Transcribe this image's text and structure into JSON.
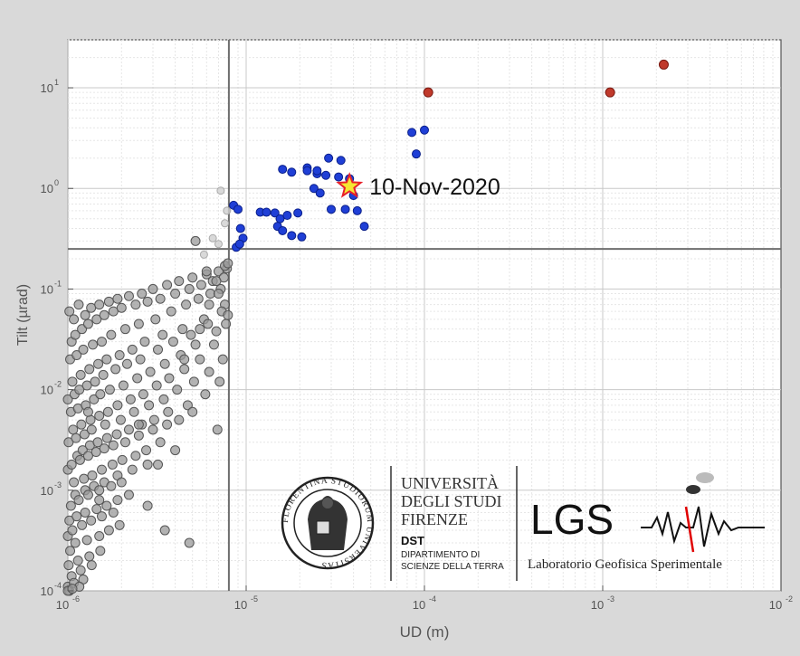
{
  "chart_data": {
    "type": "scatter",
    "title": "",
    "xlabel": "UD (m)",
    "ylabel": "Tilt (µrad)",
    "x_scale": "log",
    "y_scale": "log",
    "xlim": [
      1e-06,
      0.01
    ],
    "ylim": [
      0.0001,
      30
    ],
    "grid": true,
    "x_ticks": [
      {
        "base": "10",
        "exp": "-6",
        "value": 1e-06
      },
      {
        "base": "10",
        "exp": "-5",
        "value": 1e-05
      },
      {
        "base": "10",
        "exp": "-4",
        "value": 0.0001
      },
      {
        "base": "10",
        "exp": "-3",
        "value": 0.001
      },
      {
        "base": "10",
        "exp": "-2",
        "value": 0.01
      }
    ],
    "y_ticks": [
      {
        "base": "10",
        "exp": "-4",
        "value": 0.0001
      },
      {
        "base": "10",
        "exp": "-3",
        "value": 0.001
      },
      {
        "base": "10",
        "exp": "-2",
        "value": 0.01
      },
      {
        "base": "10",
        "exp": "-1",
        "value": 0.1
      },
      {
        "base": "10",
        "exp": "0",
        "value": 1
      },
      {
        "base": "10",
        "exp": "1",
        "value": 10
      }
    ],
    "threshold_lines": {
      "x": 8e-06,
      "y": 0.25
    },
    "colors": {
      "gray": "#9a9a9a",
      "blue": "#1f3fd6",
      "red": "#c0392b",
      "star_fill": "#f5e632",
      "star_stroke": "#e8202a",
      "threshold": "#6e6e6e"
    },
    "series": [
      {
        "group": "gray",
        "x": [
          1.02e-06,
          1.08e-06,
          1.15e-06,
          1.25e-06,
          1.35e-06,
          1.5e-06,
          1.7e-06,
          1.9e-06,
          2.2e-06,
          2.6e-06,
          3e-06,
          3.6e-06,
          4.2e-06,
          5e-06,
          6e-06,
          7e-06,
          7.8e-06,
          1.05e-06,
          1.1e-06,
          1.2e-06,
          1.3e-06,
          1.45e-06,
          1.6e-06,
          1.8e-06,
          2e-06,
          2.4e-06,
          2.8e-06,
          3.3e-06,
          4e-06,
          4.8e-06,
          5.6e-06,
          6.5e-06,
          7.5e-06,
          1.03e-06,
          1.12e-06,
          1.22e-06,
          1.38e-06,
          1.55e-06,
          1.75e-06,
          2.1e-06,
          2.5e-06,
          3.1e-06,
          3.8e-06,
          4.6e-06,
          5.4e-06,
          6.3e-06,
          7.2e-06,
          1.06e-06,
          1.18e-06,
          1.32e-06,
          1.48e-06,
          1.65e-06,
          1.95e-06,
          2.3e-06,
          2.7e-06,
          3.4e-06,
          4.4e-06,
          5.8e-06,
          7.6e-06,
          1e-06,
          1.09e-06,
          1.16e-06,
          1.28e-06,
          1.42e-06,
          1.58e-06,
          1.85e-06,
          2.15e-06,
          2.55e-06,
          3.2e-06,
          3.9e-06,
          4.9e-06,
          6.1e-06,
          7.3e-06,
          1.04e-06,
          1.14e-06,
          1.26e-06,
          1.4e-06,
          1.52e-06,
          1.72e-06,
          2.05e-06,
          2.45e-06,
          2.9e-06,
          3.5e-06,
          4.3e-06,
          5.2e-06,
          6.8e-06,
          7.9e-06,
          1.07e-06,
          1.19e-06,
          1.34e-06,
          1.5e-06,
          1.68e-06,
          1.9e-06,
          2.25e-06,
          2.65e-06,
          3.15e-06,
          3.7e-06,
          4.5e-06,
          5.5e-06,
          6.6e-06,
          7.7e-06,
          1.01e-06,
          1.11e-06,
          1.24e-06,
          1.36e-06,
          1.62e-06,
          1.98e-06,
          2.35e-06,
          2.85e-06,
          3.45e-06,
          4.1e-06,
          5.1e-06,
          6.2e-06,
          7.4e-06,
          1.13e-06,
          1.21e-06,
          1.33e-06,
          1.47e-06,
          1.66e-06,
          1.88e-06,
          2.2e-06,
          2.6e-06,
          3.05e-06,
          3.65e-06,
          4.7e-06,
          5.9e-06,
          7.1e-06,
          1e-06,
          1.05e-06,
          1.17e-06,
          1.3e-06,
          1.44e-06,
          1.6e-06,
          1.8e-06,
          2.1e-06,
          2.5e-06,
          3e-06,
          3.6e-06,
          4.2e-06,
          5e-06,
          1.08e-06,
          1.23e-06,
          1.37e-06,
          1.55e-06,
          1.78e-06,
          2.02e-06,
          2.4e-06,
          2.75e-06,
          3.3e-06,
          1.1e-06,
          1.25e-06,
          1.4e-06,
          1.6e-06,
          1.9e-06,
          2.3e-06,
          2.8e-06,
          1.04e-06,
          1.15e-06,
          1.3e-06,
          1.5e-06,
          1.75e-06,
          2e-06,
          1.02e-06,
          1.12e-06,
          1.25e-06,
          1.45e-06,
          1.65e-06,
          1.9e-06,
          2.2e-06,
          1e-06,
          1.06e-06,
          1.2e-06,
          1.35e-06,
          1.55e-06,
          1.8e-06,
          1.03e-06,
          1.1e-06,
          1.28e-06,
          1.5e-06,
          1.7e-06,
          1.01e-06,
          1.14e-06,
          1.32e-06,
          1.52e-06,
          1.05e-06,
          1.18e-06,
          1.36e-06,
          1e-06,
          1.08e-06,
          1.22e-06,
          1.02e-06,
          1.16e-06,
          1e-06,
          1.06e-06,
          1.5e-06,
          1.95e-06,
          4e-06,
          2.8e-06,
          3.5e-06,
          4.5e-06,
          5.5e-06,
          6.2e-06,
          7e-06,
          6e-06,
          5.2e-06,
          6.8e-06,
          7.6e-06,
          7.9e-06,
          1.3e-06,
          2.5e-06,
          4.8e-06,
          6.9e-06,
          3.2e-06
        ],
        "y": [
          0.06,
          0.05,
          0.07,
          0.055,
          0.065,
          0.07,
          0.075,
          0.08,
          0.085,
          0.09,
          0.1,
          0.11,
          0.12,
          0.13,
          0.14,
          0.15,
          0.16,
          0.03,
          0.035,
          0.04,
          0.045,
          0.05,
          0.055,
          0.06,
          0.065,
          0.07,
          0.075,
          0.08,
          0.09,
          0.1,
          0.11,
          0.12,
          0.13,
          0.02,
          0.022,
          0.025,
          0.028,
          0.03,
          0.035,
          0.04,
          0.045,
          0.05,
          0.06,
          0.07,
          0.08,
          0.09,
          0.1,
          0.012,
          0.014,
          0.016,
          0.018,
          0.02,
          0.022,
          0.025,
          0.03,
          0.035,
          0.04,
          0.05,
          0.07,
          0.008,
          0.009,
          0.01,
          0.011,
          0.012,
          0.014,
          0.016,
          0.018,
          0.02,
          0.025,
          0.03,
          0.035,
          0.045,
          0.06,
          0.006,
          0.0065,
          0.007,
          0.008,
          0.009,
          0.01,
          0.011,
          0.013,
          0.015,
          0.018,
          0.022,
          0.028,
          0.038,
          0.055,
          0.004,
          0.0045,
          0.005,
          0.0055,
          0.006,
          0.007,
          0.008,
          0.009,
          0.011,
          0.013,
          0.016,
          0.02,
          0.028,
          0.045,
          0.003,
          0.0033,
          0.0036,
          0.004,
          0.0045,
          0.005,
          0.006,
          0.007,
          0.008,
          0.01,
          0.012,
          0.015,
          0.02,
          0.0022,
          0.0025,
          0.0028,
          0.003,
          0.0033,
          0.0036,
          0.004,
          0.0045,
          0.005,
          0.006,
          0.007,
          0.009,
          0.012,
          0.0016,
          0.0018,
          0.002,
          0.0022,
          0.0024,
          0.0026,
          0.0028,
          0.003,
          0.0035,
          0.004,
          0.0045,
          0.005,
          0.006,
          0.0012,
          0.0013,
          0.0014,
          0.0016,
          0.0018,
          0.002,
          0.0022,
          0.0025,
          0.003,
          0.0009,
          0.001,
          0.0011,
          0.0012,
          0.0014,
          0.0016,
          0.0018,
          0.0007,
          0.0008,
          0.0009,
          0.001,
          0.0011,
          0.0012,
          0.0005,
          0.00055,
          0.0006,
          0.00065,
          0.0007,
          0.0008,
          0.0009,
          0.00035,
          0.0004,
          0.00045,
          0.0005,
          0.00055,
          0.0006,
          0.00025,
          0.0003,
          0.00032,
          0.00035,
          0.0004,
          0.00018,
          0.0002,
          0.00022,
          0.00025,
          0.00014,
          0.00016,
          0.00018,
          0.00011,
          0.00012,
          0.00013,
          0.0001,
          0.00011,
          0.0001,
          0.000105,
          0.0008,
          0.00045,
          0.0025,
          0.0007,
          0.0004,
          0.02,
          0.04,
          0.07,
          0.09,
          0.15,
          0.3,
          0.12,
          0.17,
          0.18,
          0.006,
          0.0045,
          0.0003,
          0.004,
          0.0018
        ],
        "r": 5
      },
      {
        "group": "gray_light",
        "x": [
          7.2e-06,
          7.6e-06,
          7.8e-06,
          6.5e-06,
          7e-06,
          5.8e-06
        ],
        "y": [
          0.95,
          0.45,
          0.6,
          0.32,
          0.28,
          0.22
        ],
        "r": 4
      },
      {
        "group": "blue",
        "x": [
          8.5e-06,
          9e-06,
          9.3e-06,
          8.8e-06,
          9.6e-06,
          9.2e-06,
          1.2e-05,
          1.3e-05,
          1.45e-05,
          1.55e-05,
          1.7e-05,
          1.95e-05,
          1.5e-05,
          1.6e-05,
          1.8e-05,
          2.05e-05,
          1.6e-05,
          1.8e-05,
          2.2e-05,
          2.5e-05,
          2.8e-05,
          3.3e-05,
          3.8e-05,
          4.6e-05,
          2.4e-05,
          2.6e-05,
          3e-05,
          3.6e-05,
          4e-05,
          2.2e-05,
          2.5e-05,
          2.9e-05,
          3.4e-05,
          4.2e-05,
          8.5e-05,
          9e-05,
          0.0001
        ],
        "y": [
          0.68,
          0.62,
          0.4,
          0.26,
          0.32,
          0.28,
          0.58,
          0.58,
          0.57,
          0.5,
          0.54,
          0.57,
          0.42,
          0.38,
          0.34,
          0.33,
          1.55,
          1.45,
          1.6,
          1.4,
          1.35,
          1.3,
          1.25,
          0.42,
          1.0,
          0.9,
          0.62,
          0.62,
          0.85,
          1.5,
          1.5,
          2.0,
          1.9,
          0.6,
          3.6,
          2.2,
          3.8
        ],
        "r": 4.5
      },
      {
        "group": "red",
        "x": [
          0.000105,
          0.0011,
          0.0022
        ],
        "y": [
          9.0,
          9.0,
          17.0
        ],
        "r": 5
      }
    ],
    "annotations": [
      {
        "label": "10-Nov-2020",
        "x": 3.8e-05,
        "y": 1.05
      }
    ]
  },
  "logos": {
    "seal_text": "FLORENTINA STUDIORUM UNIVERSITAS",
    "unifi_line1": "UNIVERSITÀ",
    "unifi_line2": "DEGLI STUDI",
    "unifi_line3": "FIRENZE",
    "dst_abbr": "DST",
    "dst_line1": "DIPARTIMENTO DI",
    "dst_line2": "SCIENZE DELLA TERRA",
    "lgs_abbr": "LGS",
    "lgs_full": "Laboratorio Geofisica Sperimentale"
  }
}
